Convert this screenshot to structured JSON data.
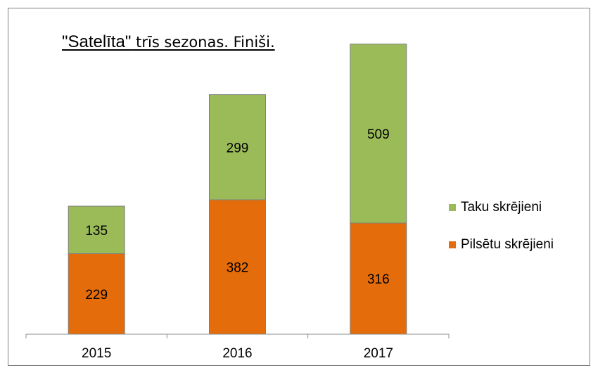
{
  "colors": {
    "trail": "#9bbb59",
    "urban": "#e46c0a",
    "axis": "#8c8c8c",
    "frame": "#7f7f7f"
  },
  "chart_data": {
    "type": "bar",
    "stacked": true,
    "title_main": "\"Satelīta\"",
    "title_rest": " trīs sezonas. Finiši.",
    "categories": [
      "2015",
      "2016",
      "2017"
    ],
    "series": [
      {
        "name": "Pilsētu skrējieni",
        "color": "#e46c0a",
        "values": [
          229,
          382,
          316
        ]
      },
      {
        "name": "Taku skrējieni",
        "color": "#9bbb59",
        "values": [
          135,
          299,
          509
        ]
      }
    ],
    "data_labels": true,
    "grid": false,
    "legend": "right",
    "ylim": [
      0,
      900
    ]
  }
}
